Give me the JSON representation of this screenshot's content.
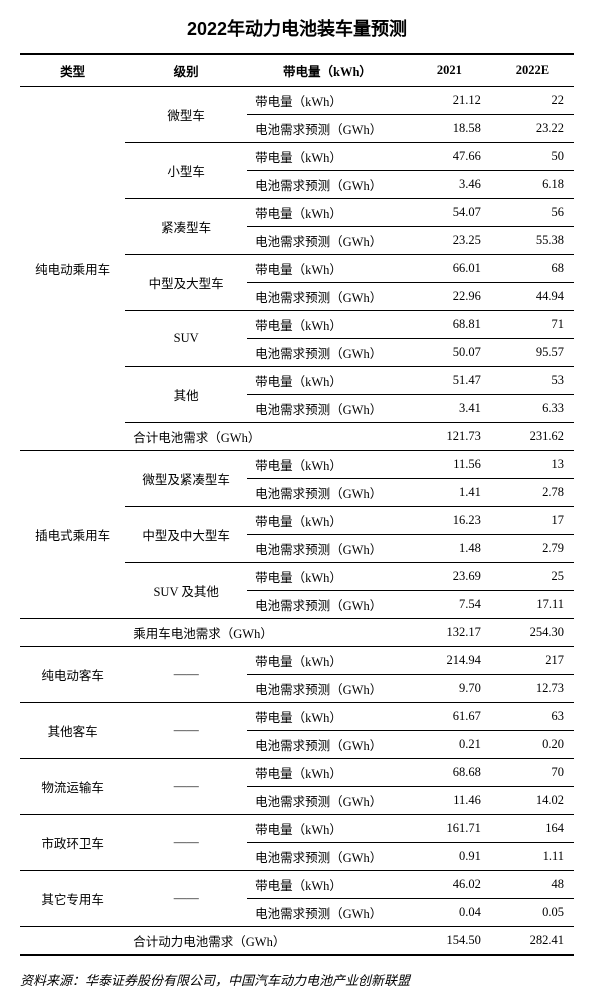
{
  "title": "2022年动力电池装车量预测",
  "headers": {
    "type": "类型",
    "level": "级别",
    "metric": "带电量（kWh）",
    "y2021": "2021",
    "y2022": "2022E"
  },
  "metric_labels": {
    "capacity": "带电量（kWh）",
    "demand": "电池需求预测（GWh）"
  },
  "groups": [
    {
      "type": "纯电动乘用车",
      "levels": [
        {
          "level": "微型车",
          "rows": [
            {
              "m": "capacity",
              "v21": "21.12",
              "v22": "22"
            },
            {
              "m": "demand",
              "v21": "18.58",
              "v22": "23.22"
            }
          ]
        },
        {
          "level": "小型车",
          "rows": [
            {
              "m": "capacity",
              "v21": "47.66",
              "v22": "50"
            },
            {
              "m": "demand",
              "v21": "3.46",
              "v22": "6.18"
            }
          ]
        },
        {
          "level": "紧凑型车",
          "rows": [
            {
              "m": "capacity",
              "v21": "54.07",
              "v22": "56"
            },
            {
              "m": "demand",
              "v21": "23.25",
              "v22": "55.38"
            }
          ]
        },
        {
          "level": "中型及大型车",
          "rows": [
            {
              "m": "capacity",
              "v21": "66.01",
              "v22": "68"
            },
            {
              "m": "demand",
              "v21": "22.96",
              "v22": "44.94"
            }
          ]
        },
        {
          "level": "SUV",
          "rows": [
            {
              "m": "capacity",
              "v21": "68.81",
              "v22": "71"
            },
            {
              "m": "demand",
              "v21": "50.07",
              "v22": "95.57"
            }
          ]
        },
        {
          "level": "其他",
          "rows": [
            {
              "m": "capacity",
              "v21": "51.47",
              "v22": "53"
            },
            {
              "m": "demand",
              "v21": "3.41",
              "v22": "6.33"
            }
          ]
        }
      ],
      "summary": {
        "label": "合计电池需求（GWh）",
        "span": 2,
        "v21": "121.73",
        "v22": "231.62"
      }
    },
    {
      "type": "插电式乘用车",
      "levels": [
        {
          "level": "微型及紧凑型车",
          "rows": [
            {
              "m": "capacity",
              "v21": "11.56",
              "v22": "13"
            },
            {
              "m": "demand",
              "v21": "1.41",
              "v22": "2.78"
            }
          ]
        },
        {
          "level": "中型及中大型车",
          "rows": [
            {
              "m": "capacity",
              "v21": "16.23",
              "v22": "17"
            },
            {
              "m": "demand",
              "v21": "1.48",
              "v22": "2.79"
            }
          ]
        },
        {
          "level": "SUV 及其他",
          "rows": [
            {
              "m": "capacity",
              "v21": "23.69",
              "v22": "25"
            },
            {
              "m": "demand",
              "v21": "7.54",
              "v22": "17.11"
            }
          ]
        }
      ]
    }
  ],
  "passenger_summary": {
    "label": "乘用车电池需求（GWh）",
    "v21": "132.17",
    "v22": "254.30"
  },
  "commercial": [
    {
      "type": "纯电动客车",
      "level": "——",
      "rows": [
        {
          "m": "capacity",
          "v21": "214.94",
          "v22": "217"
        },
        {
          "m": "demand",
          "v21": "9.70",
          "v22": "12.73"
        }
      ]
    },
    {
      "type": "其他客车",
      "level": "——",
      "rows": [
        {
          "m": "capacity",
          "v21": "61.67",
          "v22": "63"
        },
        {
          "m": "demand",
          "v21": "0.21",
          "v22": "0.20"
        }
      ]
    },
    {
      "type": "物流运输车",
      "level": "——",
      "rows": [
        {
          "m": "capacity",
          "v21": "68.68",
          "v22": "70"
        },
        {
          "m": "demand",
          "v21": "11.46",
          "v22": "14.02"
        }
      ]
    },
    {
      "type": "市政环卫车",
      "level": "——",
      "rows": [
        {
          "m": "capacity",
          "v21": "161.71",
          "v22": "164"
        },
        {
          "m": "demand",
          "v21": "0.91",
          "v22": "1.11"
        }
      ]
    },
    {
      "type": "其它专用车",
      "level": "——",
      "rows": [
        {
          "m": "capacity",
          "v21": "46.02",
          "v22": "48"
        },
        {
          "m": "demand",
          "v21": "0.04",
          "v22": "0.05"
        }
      ]
    }
  ],
  "total_summary": {
    "label": "合计动力电池需求（GWh）",
    "v21": "154.50",
    "v22": "282.41"
  },
  "source": "资料来源：华泰证券股份有限公司，中国汽车动力电池产业创新联盟",
  "style": {
    "title_fontsize": 18,
    "body_fontsize": 12.5,
    "source_fontsize": 13,
    "text_color": "#000000",
    "background_color": "#ffffff",
    "border_color": "#000000"
  }
}
